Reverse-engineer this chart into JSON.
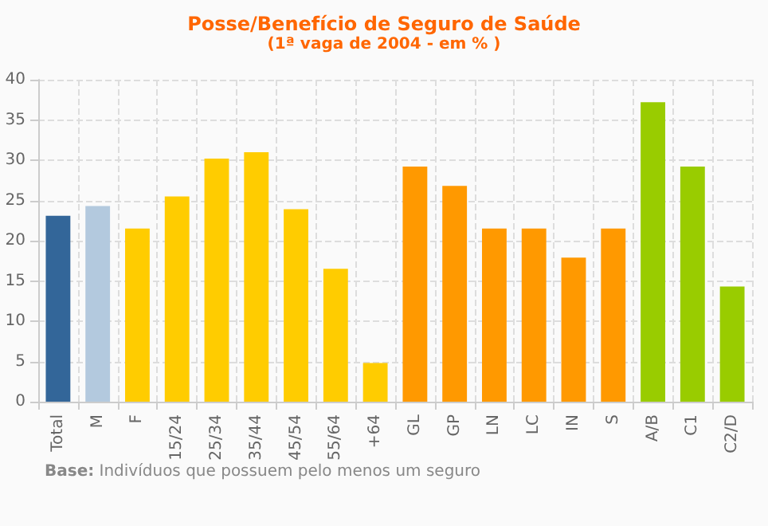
{
  "chart_data": {
    "type": "bar",
    "title": "Posse/Benefício de Seguro de Saúde",
    "subtitle": "(1ª vaga de 2004 - em % )",
    "categories": [
      "Total",
      "M",
      "F",
      "15/24",
      "25/34",
      "35/44",
      "45/54",
      "55/64",
      "+64",
      "GL",
      "GP",
      "LN",
      "LC",
      "IN",
      "S",
      "A/B",
      "C1",
      "C2/D"
    ],
    "values": [
      23.1,
      24.3,
      21.5,
      25.5,
      30.2,
      31.0,
      23.9,
      16.5,
      4.8,
      29.2,
      26.8,
      21.5,
      21.5,
      17.9,
      21.5,
      37.2,
      29.2,
      14.3
    ],
    "colors": [
      "#336699",
      "#b3c9de",
      "#ffcc00",
      "#ffcc00",
      "#ffcc00",
      "#ffcc00",
      "#ffcc00",
      "#ffcc00",
      "#ffcc00",
      "#ff9900",
      "#ff9900",
      "#ff9900",
      "#ff9900",
      "#ff9900",
      "#ff9900",
      "#99cc00",
      "#99cc00",
      "#99cc00"
    ],
    "ylim": [
      0,
      40
    ],
    "yticks": [
      0,
      5,
      10,
      15,
      20,
      25,
      30,
      35,
      40
    ],
    "grid": true,
    "annotations": [
      "Base: Indivíduos que possuem pelo menos um seguro"
    ]
  }
}
